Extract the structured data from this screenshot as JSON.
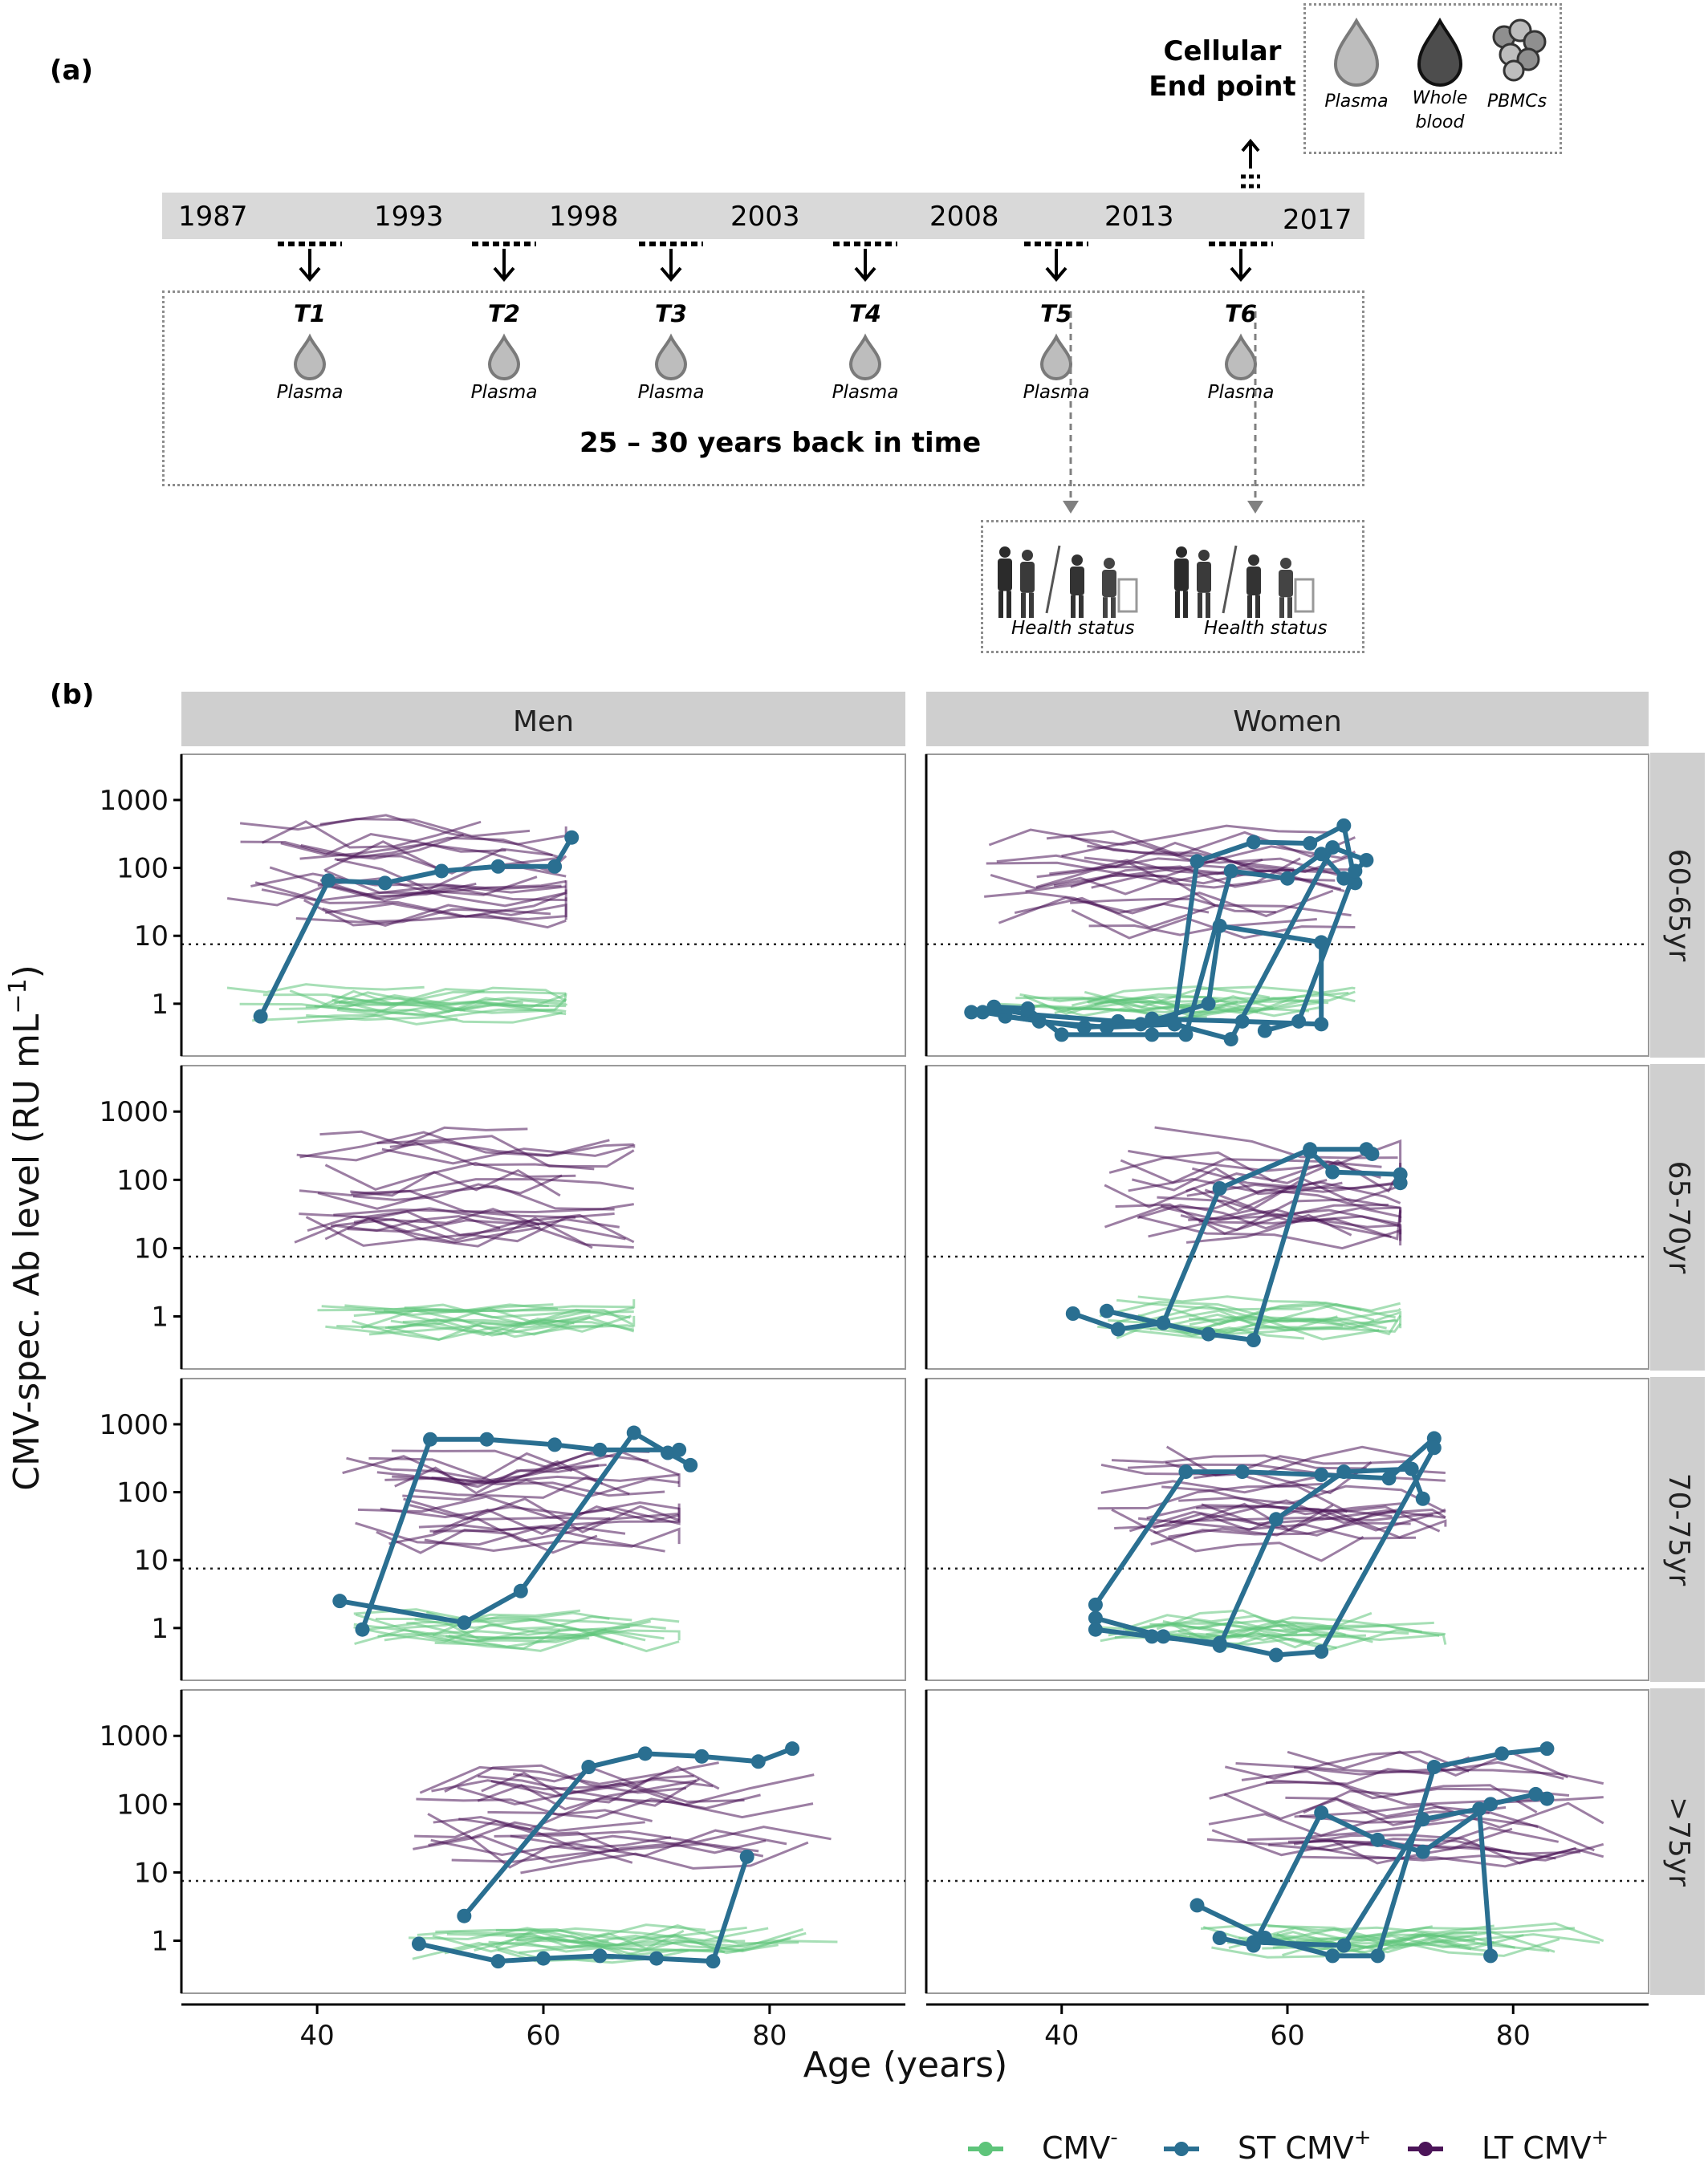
{
  "panel_a": {
    "label": "(a)",
    "years": [
      "1987",
      "1993",
      "1998",
      "2003",
      "2008",
      "2013",
      "2017"
    ],
    "timepoints": [
      "T1",
      "T2",
      "T3",
      "T4",
      "T5",
      "T6"
    ],
    "plasma_label": "Plasma",
    "back_in_time": "25 – 30 years back in time",
    "cellular_title_1": "Cellular",
    "cellular_title_2": "End point",
    "cellular_samples": {
      "plasma": "Plasma",
      "whole_blood_1": "Whole",
      "whole_blood_2": "blood",
      "pbmcs": "PBMCs"
    },
    "health_status": [
      "Health status",
      "Health status"
    ],
    "colors": {
      "timeline": "#d9d9d9",
      "drop_light": "#bdbdbd",
      "drop_dark": "#4d4d4d"
    }
  },
  "panel_b": {
    "label": "(b)",
    "strip_cols": [
      "Men",
      "Women"
    ],
    "strip_rows": [
      "60-65yr",
      "65-70yr",
      "70-75yr",
      ">75yr"
    ],
    "xlabel": "Age (years)",
    "ylabel": "CMV-spec. Ab level (RU mL",
    "ylabel_sup": "−1",
    "ylabel_close": ")",
    "x_ticks": [
      "40",
      "60",
      "80"
    ],
    "y_ticks": [
      "1",
      "10",
      "100",
      "1000"
    ],
    "legend": [
      {
        "label": "CMV",
        "sup": "-",
        "color": "#5ec47a"
      },
      {
        "label": "ST  CMV",
        "sup": "+",
        "color": "#2a6f91"
      },
      {
        "label": "LT  CMV",
        "sup": "+",
        "color": "#4b1458"
      }
    ]
  },
  "chart_data": {
    "type": "line",
    "xlabel": "Age (years)",
    "ylabel": "CMV-spec. Ab level (RU mL−1)",
    "yscale": "log",
    "xlim": [
      28,
      92
    ],
    "ylim": [
      0.2,
      4000
    ],
    "threshold": 7.5,
    "facets": {
      "Men|60-65yr": {
        "ST": [
          [
            [
              35,
              0.65
            ],
            [
              41,
              65
            ],
            [
              46,
              60
            ],
            [
              51,
              90
            ],
            [
              56,
              105
            ],
            [
              61,
              105
            ],
            [
              62.5,
              280
            ]
          ]
        ]
      },
      "Women|60-65yr": {
        "ST": [
          [
            [
              32,
              0.75
            ],
            [
              34,
              0.85
            ],
            [
              37,
              0.7
            ],
            [
              45,
              0.55
            ],
            [
              50,
              0.5
            ],
            [
              52,
              125
            ],
            [
              57,
              240
            ],
            [
              62,
              230
            ],
            [
              65,
              420
            ],
            [
              66,
              60
            ]
          ],
          [
            [
              34,
              0.9
            ],
            [
              37,
              0.85
            ],
            [
              40,
              0.35
            ],
            [
              48,
              0.35
            ],
            [
              51,
              0.35
            ],
            [
              55,
              90
            ],
            [
              60,
              70
            ],
            [
              63,
              160
            ],
            [
              65,
              70
            ]
          ],
          [
            [
              35,
              0.65
            ],
            [
              42,
              0.45
            ],
            [
              47,
              0.5
            ],
            [
              53,
              1.0
            ],
            [
              54,
              14
            ],
            [
              63,
              8
            ],
            [
              63,
              0.5
            ],
            [
              56,
              0.55
            ],
            [
              48,
              0.6
            ]
          ],
          [
            [
              33,
              0.75
            ],
            [
              38,
              0.55
            ],
            [
              44,
              0.45
            ],
            [
              50,
              0.5
            ],
            [
              55,
              0.3
            ],
            [
              64,
              200
            ],
            [
              67,
              130
            ],
            [
              66,
              90
            ],
            [
              61,
              0.55
            ],
            [
              58,
              0.4
            ]
          ]
        ]
      },
      "Men|65-70yr": {
        "ST": []
      },
      "Women|65-70yr": {
        "ST": [
          [
            [
              41,
              1.1
            ],
            [
              45,
              0.65
            ],
            [
              49,
              0.8
            ],
            [
              54,
              75
            ],
            [
              62,
              280
            ],
            [
              67,
              280
            ],
            [
              67.5,
              240
            ]
          ],
          [
            [
              44,
              1.2
            ],
            [
              53,
              0.55
            ],
            [
              57,
              0.45
            ],
            [
              62,
              260
            ],
            [
              64,
              130
            ],
            [
              70,
              120
            ],
            [
              70,
              90
            ]
          ]
        ]
      },
      "Men|70-75yr": {
        "ST": [
          [
            [
              42,
              2.5
            ],
            [
              53,
              1.2
            ],
            [
              58,
              3.5
            ],
            [
              68,
              750
            ],
            [
              71,
              380
            ],
            [
              73,
              250
            ]
          ],
          [
            [
              44,
              0.95
            ],
            [
              50,
              600
            ],
            [
              55,
              600
            ],
            [
              61,
              500
            ],
            [
              65,
              420
            ],
            [
              72,
              420
            ]
          ]
        ]
      },
      "Women|70-75yr": {
        "ST": [
          [
            [
              43,
              2.2
            ],
            [
              51,
              200
            ],
            [
              56,
              200
            ],
            [
              63,
              180
            ],
            [
              69,
              160
            ],
            [
              73,
              620
            ]
          ],
          [
            [
              43,
              1.4
            ],
            [
              49,
              0.75
            ],
            [
              54,
              0.55
            ],
            [
              59,
              40
            ],
            [
              65,
              200
            ],
            [
              71,
              220
            ],
            [
              72,
              80
            ]
          ],
          [
            [
              43,
              0.95
            ],
            [
              48,
              0.75
            ],
            [
              54,
              0.6
            ],
            [
              59,
              0.4
            ],
            [
              63,
              0.45
            ],
            [
              73,
              450
            ]
          ]
        ]
      },
      "Men|>75yr": {
        "ST": [
          [
            [
              53,
              2.3
            ],
            [
              64,
              350
            ],
            [
              69,
              550
            ],
            [
              74,
              500
            ],
            [
              79,
              420
            ],
            [
              82,
              650
            ]
          ],
          [
            [
              49,
              0.9
            ],
            [
              56,
              0.5
            ],
            [
              60,
              0.55
            ],
            [
              65,
              0.6
            ],
            [
              70,
              0.55
            ],
            [
              75,
              0.5
            ],
            [
              78,
              17
            ]
          ]
        ]
      },
      "Women|>75yr": {
        "ST": [
          [
            [
              52,
              3.3
            ],
            [
              58,
              1.1
            ],
            [
              64,
              0.6
            ],
            [
              68,
              0.6
            ],
            [
              73,
              350
            ],
            [
              79,
              550
            ],
            [
              83,
              650
            ]
          ],
          [
            [
              54,
              1.1
            ],
            [
              57,
              0.85
            ],
            [
              63,
              75
            ],
            [
              68,
              30
            ],
            [
              72,
              20
            ],
            [
              78,
              100
            ],
            [
              82,
              140
            ],
            [
              83,
              120
            ]
          ],
          [
            [
              57,
              0.95
            ],
            [
              65,
              0.85
            ],
            [
              72,
              60
            ],
            [
              77,
              85
            ],
            [
              78,
              0.6
            ]
          ]
        ]
      }
    },
    "series": [
      {
        "name": "CMV-",
        "color": "#5ec47a"
      },
      {
        "name": "ST CMV+",
        "color": "#2a6f91"
      },
      {
        "name": "LT CMV+",
        "color": "#4b1458"
      }
    ]
  }
}
